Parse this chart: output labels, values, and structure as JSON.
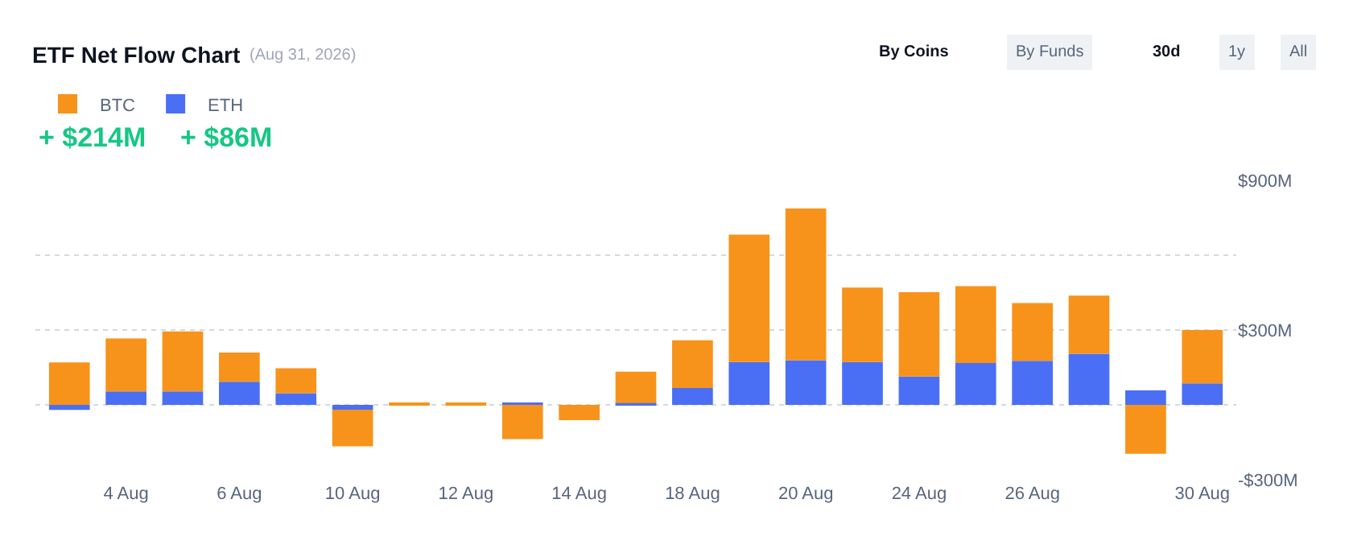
{
  "chart_data": {
    "type": "bar",
    "title": "ETF Net Flow Chart",
    "subtitle": "(Aug 31, 2026)",
    "categories": [
      null,
      "4 Aug",
      null,
      "6 Aug",
      null,
      "10 Aug",
      null,
      "12 Aug",
      null,
      "14 Aug",
      null,
      "18 Aug",
      null,
      "20 Aug",
      null,
      "24 Aug",
      null,
      "26 Aug",
      null,
      null,
      "30 Aug"
    ],
    "stacked": true,
    "series": [
      {
        "name": "ETH",
        "color": "#4a6ff5",
        "values": [
          -20,
          54,
          54,
          93,
          47,
          -19,
          null,
          null,
          9,
          null,
          7,
          68,
          172,
          179,
          172,
          114,
          168,
          177,
          205,
          58,
          86
        ]
      },
      {
        "name": "BTC",
        "color": "#f7931a",
        "values": [
          170,
          212,
          240,
          117,
          100,
          -147,
          9,
          5,
          -137,
          -61,
          126,
          191,
          510,
          608,
          298,
          338,
          308,
          231,
          233,
          -196,
          214
        ]
      }
    ],
    "ylim": [
      -300,
      900
    ],
    "yticks": [
      {
        "value": -300,
        "label": "-$300M"
      },
      {
        "value": 0,
        "label": null
      },
      {
        "value": 300,
        "label": "$300M"
      },
      {
        "value": 600,
        "label": null
      },
      {
        "value": 900,
        "label": "$900M"
      }
    ],
    "grid": "y",
    "legend": "top left",
    "annotations": [
      "+ $214M",
      "+ $86M",
      "By Coins",
      "By Funds",
      "30d",
      "1y",
      "All"
    ]
  }
}
